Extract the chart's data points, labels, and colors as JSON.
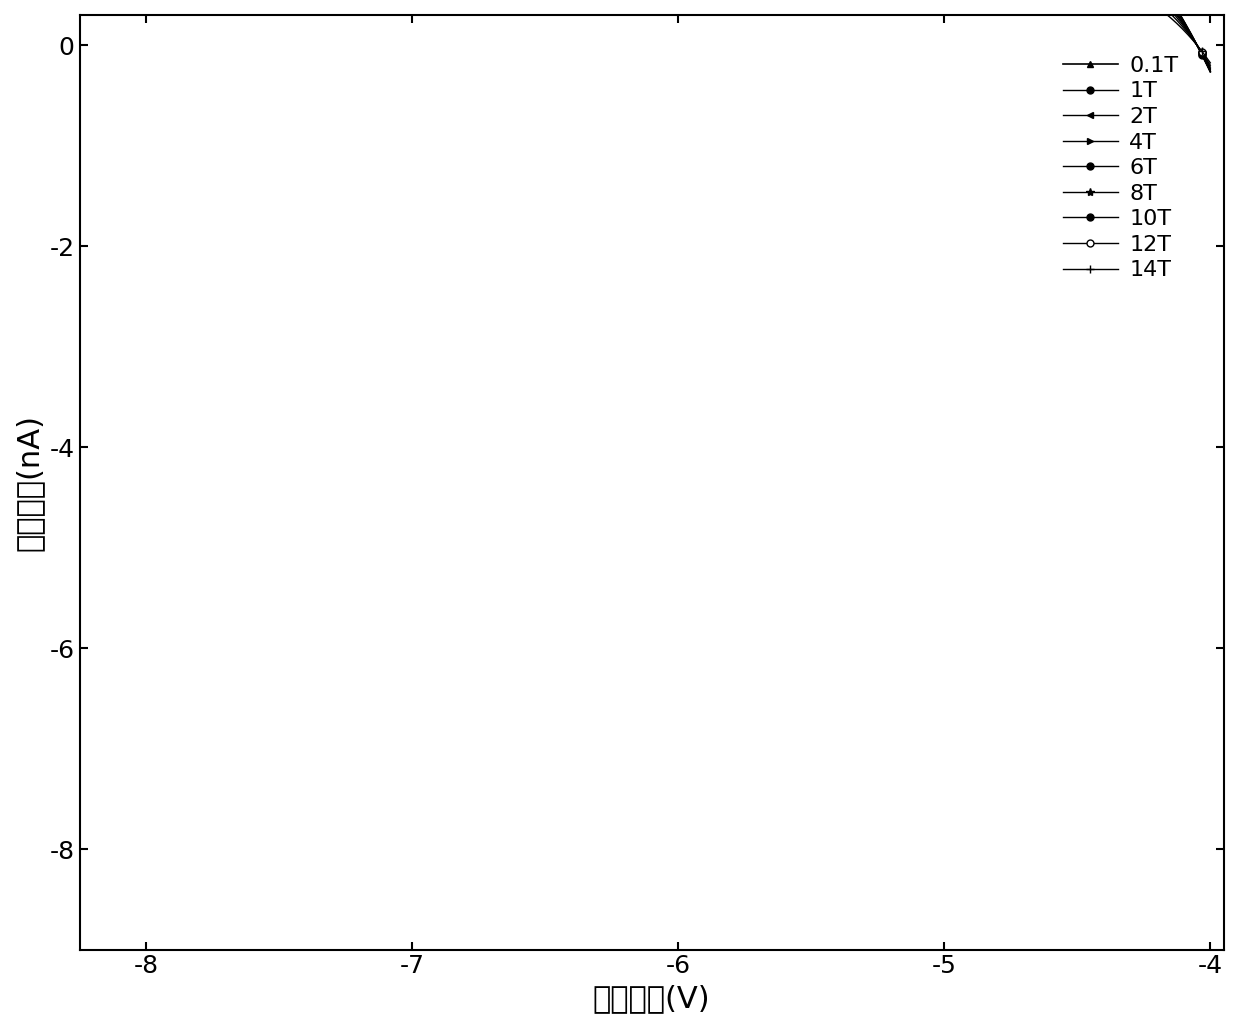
{
  "xlabel": "源漏电压(V)",
  "ylabel": "源漏电流(nA)",
  "xlim": [
    -8.25,
    -3.95
  ],
  "ylim": [
    -9.0,
    0.3
  ],
  "xticks": [
    -8,
    -7,
    -6,
    -5,
    -4
  ],
  "yticks": [
    0,
    -2,
    -4,
    -6,
    -8
  ],
  "background_color": "#ffffff",
  "label_fontsize": 22,
  "tick_fontsize": 18,
  "legend_fontsize": 16,
  "series": [
    {
      "label": "0.1T",
      "marker": "^",
      "ms": 5,
      "A": -2.8,
      "V0": -4.05,
      "alpha": 1.8,
      "mfc": "black",
      "me": 20,
      "lw": 1.2
    },
    {
      "label": "1T",
      "marker": "o",
      "ms": 5,
      "A": -2.5,
      "V0": -4.05,
      "alpha": 2.0,
      "mfc": "black",
      "me": 18,
      "lw": 1.0
    },
    {
      "label": "2T",
      "marker": "<",
      "ms": 5,
      "A": -2.3,
      "V0": -4.05,
      "alpha": 2.2,
      "mfc": "black",
      "me": 18,
      "lw": 1.0
    },
    {
      "label": "4T",
      "marker": ">",
      "ms": 5,
      "A": -2.0,
      "V0": -4.05,
      "alpha": 2.4,
      "mfc": "black",
      "me": 18,
      "lw": 1.0
    },
    {
      "label": "6T",
      "marker": "o",
      "ms": 5,
      "A": -1.75,
      "V0": -4.05,
      "alpha": 2.6,
      "mfc": "black",
      "me": 18,
      "lw": 1.0
    },
    {
      "label": "8T",
      "marker": "*",
      "ms": 6,
      "A": -1.55,
      "V0": -4.05,
      "alpha": 2.8,
      "mfc": "black",
      "me": 18,
      "lw": 1.0
    },
    {
      "label": "10T",
      "marker": "o",
      "ms": 5,
      "A": -1.35,
      "V0": -4.05,
      "alpha": 3.0,
      "mfc": "black",
      "me": 18,
      "lw": 1.0
    },
    {
      "label": "12T",
      "marker": "o",
      "ms": 5,
      "A": -1.15,
      "V0": -4.05,
      "alpha": 3.2,
      "mfc": "white",
      "me": 18,
      "lw": 1.0
    },
    {
      "label": "14T",
      "marker": "+",
      "ms": 6,
      "A": -0.95,
      "V0": -4.05,
      "alpha": 3.4,
      "mfc": "black",
      "me": 18,
      "lw": 1.0
    }
  ]
}
